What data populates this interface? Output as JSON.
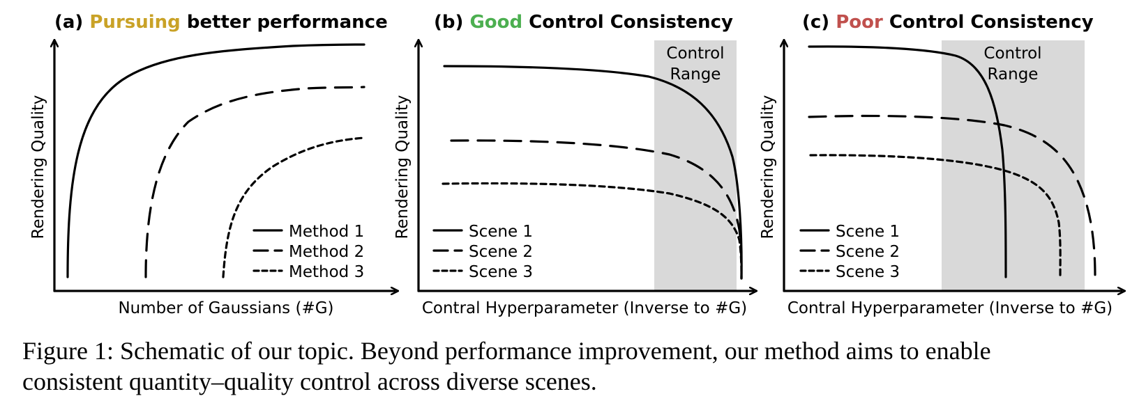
{
  "colors": {
    "pursuing": "#c9a227",
    "good": "#4caf50",
    "poor": "#c0504d",
    "control_range_fill": "#d9d9d9"
  },
  "panels": [
    {
      "title_prefix": "(a) ",
      "title_keyword": "Pursuing",
      "title_keyword_color": "pursuing",
      "title_suffix": " better performance",
      "ylabel": "Rendering Quality",
      "xlabel": "Number of Gaussians (#G)",
      "legend": [
        "Method 1",
        "Method 2",
        "Method 3"
      ],
      "control_range": null
    },
    {
      "title_prefix": "(b) ",
      "title_keyword": "Good",
      "title_keyword_color": "good",
      "title_suffix": " Control Consistency",
      "ylabel": "Rendering Quality",
      "xlabel": "Contral Hyperparameter (Inverse to #G)",
      "legend": [
        "Scene 1",
        "Scene 2",
        "Scene 3"
      ],
      "control_range": [
        "Control",
        "Range"
      ]
    },
    {
      "title_prefix": "(c) ",
      "title_keyword": "Poor",
      "title_keyword_color": "poor",
      "title_suffix": " Control Consistency",
      "ylabel": "Rendering Quality",
      "xlabel": "Contral Hyperparameter (Inverse to #G)",
      "legend": [
        "Scene 1",
        "Scene 2",
        "Scene 3"
      ],
      "control_range": [
        "Control",
        "Range"
      ]
    }
  ],
  "caption": {
    "line1": "Figure 1: Schematic of our topic. Beyond performance improvement, our method aims to enable",
    "line2": "consistent quantity–quality control across diverse scenes."
  }
}
